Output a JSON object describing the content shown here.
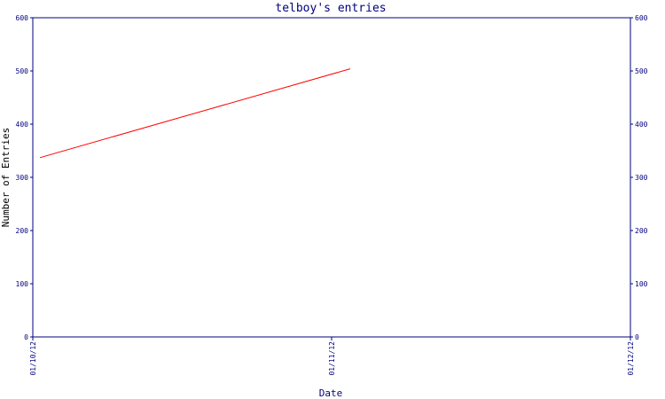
{
  "chart_data": {
    "type": "line",
    "title": "telboy's entries",
    "xlabel": "Date",
    "ylabel": "Number of Entries",
    "x_tick_labels": [
      "01/10/12",
      "01/11/12",
      "01/12/12"
    ],
    "x": [
      "01/10/12",
      "01/11/12"
    ],
    "series": [
      {
        "values": [
          337,
          504
        ]
      }
    ],
    "ylim": [
      0,
      600
    ],
    "y_ticks": [
      0,
      100,
      200,
      300,
      400,
      500,
      600
    ],
    "grid": false,
    "legend": "none",
    "colors": {
      "axis": "#00007f",
      "series": "#ff0000",
      "ylabel": "#000000"
    }
  }
}
